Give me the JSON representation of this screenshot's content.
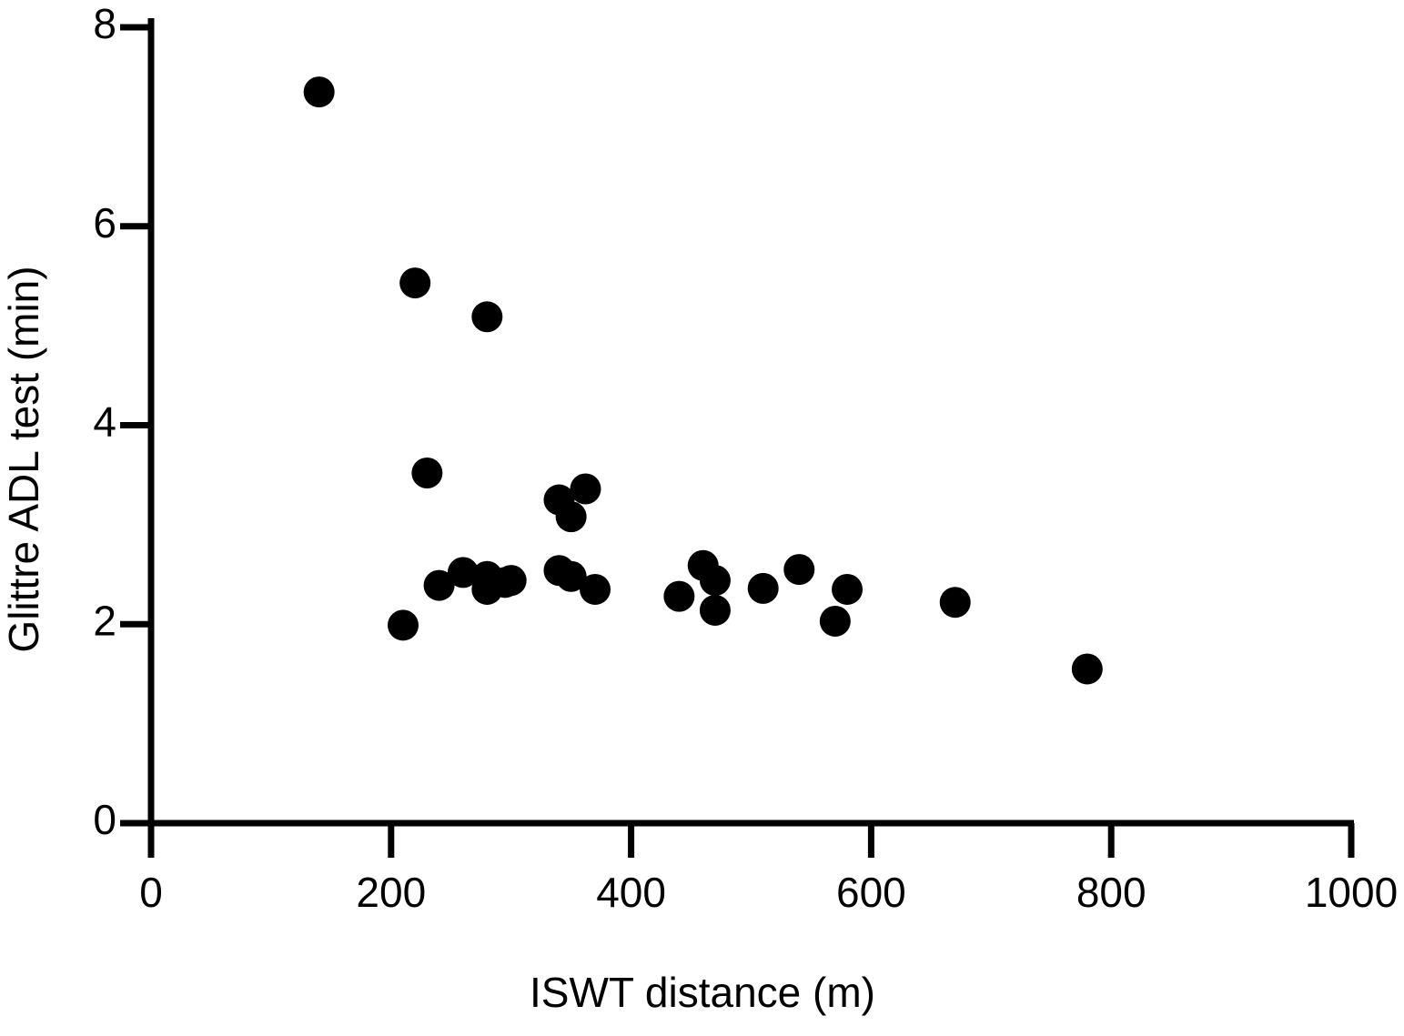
{
  "chart_data": {
    "type": "scatter",
    "xlabel": "ISWT distance (m)",
    "ylabel": "Glittre ADL test (min)",
    "x": [
      140,
      220,
      280,
      230,
      340,
      362,
      350,
      340,
      350,
      370,
      240,
      260,
      280,
      280,
      295,
      300,
      210,
      440,
      460,
      470,
      470,
      510,
      540,
      580,
      570,
      670,
      780
    ],
    "values": [
      7.35,
      5.43,
      5.09,
      3.52,
      3.25,
      3.36,
      3.08,
      2.54,
      2.48,
      2.35,
      2.39,
      2.52,
      2.48,
      2.35,
      2.42,
      2.44,
      1.99,
      2.28,
      2.59,
      2.44,
      2.14,
      2.36,
      2.55,
      2.35,
      2.03,
      2.22,
      1.55
    ],
    "color": "#000000",
    "xlim": [
      0,
      1000
    ],
    "xticks": [
      0,
      200,
      400,
      600,
      800,
      1000
    ],
    "ylim": [
      0,
      8
    ],
    "yticks": [
      0,
      2,
      4,
      6,
      8
    ]
  }
}
